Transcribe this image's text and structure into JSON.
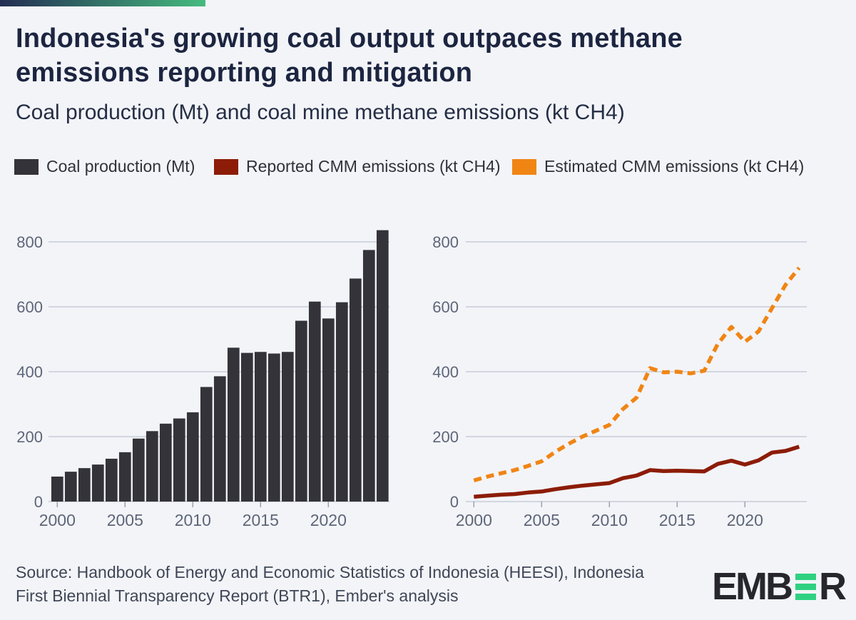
{
  "page": {
    "background": "#f3f4f8"
  },
  "accent_bar": {
    "gradient_from": "#232d52",
    "gradient_to": "#45bb7e"
  },
  "header": {
    "title_line1": "Indonesia's growing coal output outpaces methane",
    "title_line2": "emissions reporting and mitigation",
    "subtitle": "Coal production (Mt) and coal mine methane emissions (kt CH4)"
  },
  "legend": {
    "items": [
      {
        "label": "Coal production (Mt)",
        "color": "#343339"
      },
      {
        "label": "Reported CMM emissions (kt CH4)",
        "color": "#8c1c07"
      },
      {
        "label": "Estimated CMM emissions (kt CH4)",
        "color": "#f08514"
      }
    ]
  },
  "axis": {
    "label_color": "#5d6678",
    "grid_color": "#bfc4d1",
    "tick_color": "#9aa3b2"
  },
  "chart_data": [
    {
      "type": "bar",
      "name": "Coal production (Mt)",
      "title": "Coal production (Mt)",
      "xlabel": "",
      "ylabel": "Coal production (Mt)",
      "x": [
        2000,
        2001,
        2002,
        2003,
        2004,
        2005,
        2006,
        2007,
        2008,
        2009,
        2010,
        2011,
        2012,
        2013,
        2014,
        2015,
        2016,
        2017,
        2018,
        2019,
        2020,
        2021,
        2022,
        2023,
        2024
      ],
      "values": [
        77,
        92,
        103,
        114,
        132,
        152,
        194,
        217,
        240,
        256,
        275,
        353,
        386,
        474,
        458,
        461,
        456,
        461,
        557,
        616,
        564,
        614,
        687,
        775,
        836
      ],
      "color": "#343339",
      "ylim": [
        0,
        870
      ],
      "yticks": [
        0,
        200,
        400,
        600,
        800
      ],
      "xticks": [
        2000,
        2005,
        2010,
        2015,
        2020
      ],
      "grid": true,
      "legend_position": "top"
    },
    {
      "type": "line",
      "title": "Coal mine methane emissions (kt CH4)",
      "xlabel": "",
      "ylabel": "CMM emissions (kt CH4)",
      "x": [
        2000,
        2001,
        2002,
        2003,
        2004,
        2005,
        2006,
        2007,
        2008,
        2009,
        2010,
        2011,
        2012,
        2013,
        2014,
        2015,
        2016,
        2017,
        2018,
        2019,
        2020,
        2021,
        2022,
        2023,
        2024
      ],
      "series": [
        {
          "name": "Reported CMM emissions (kt CH4)",
          "color": "#8c1c07",
          "style": "solid",
          "values": [
            15,
            18,
            21,
            23,
            28,
            31,
            38,
            44,
            49,
            53,
            57,
            72,
            80,
            97,
            94,
            95,
            94,
            93,
            116,
            126,
            114,
            127,
            151,
            156,
            169
          ]
        },
        {
          "name": "Estimated CMM emissions (kt CH4)",
          "color": "#f08514",
          "style": "dashed",
          "values": [
            65,
            77,
            87,
            97,
            110,
            124,
            153,
            178,
            200,
            218,
            236,
            285,
            320,
            411,
            398,
            400,
            395,
            403,
            486,
            538,
            492,
            524,
            596,
            668,
            720
          ]
        }
      ],
      "ylim": [
        0,
        870
      ],
      "yticks": [
        0,
        200,
        400,
        600,
        800
      ],
      "xticks": [
        2000,
        2005,
        2010,
        2015,
        2020
      ],
      "grid": true,
      "legend_position": "top"
    }
  ],
  "footer": {
    "source_line1": "Source: Handbook of Energy and Economic Statistics of Indonesia (HEESI), Indonesia",
    "source_line2": "First Biennial Transparency Report (BTR1), Ember's analysis",
    "logo_prefix": "EMB",
    "logo_suffix": "R",
    "logo_dark_color": "#26262c",
    "logo_green_color": "#2fd181"
  }
}
